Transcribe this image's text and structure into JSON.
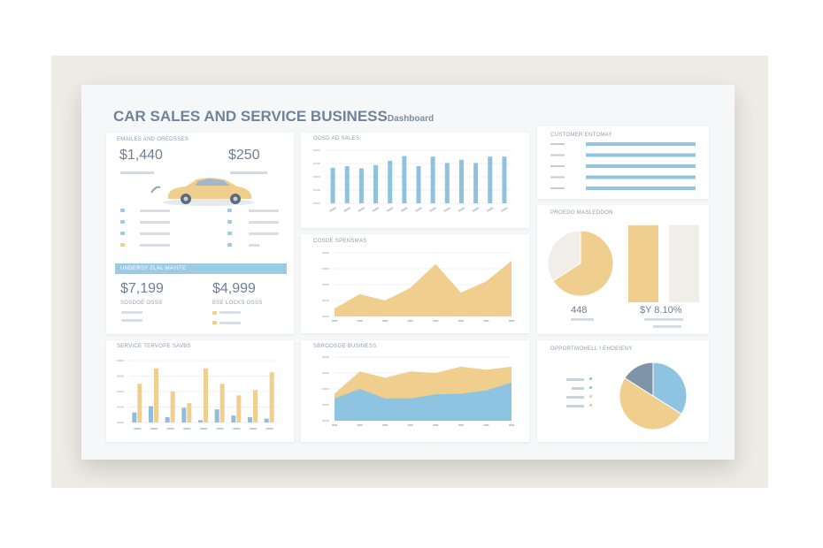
{
  "title": "CAR SALES AND SERVICE BUSINESS",
  "title_suffix": "Dashboard",
  "panel_sales": {
    "title": "EMAILES AND OREDSSES",
    "value_left": "$1,440",
    "value_right": "$250",
    "car_icon": "car-illustration",
    "legend_rows": [
      {
        "left_icon": "circle-icon",
        "right_icon": "card-icon"
      },
      {
        "left_icon": "wrench-icon",
        "right_icon": "card-icon"
      },
      {
        "left_icon": "tag-icon",
        "right_icon": "card-icon"
      },
      {
        "left_icon": "box-icon",
        "right_icon": "box-icon"
      }
    ],
    "band_title": "UNDERSY ZLAL MAYITE",
    "value_bottom_left": "$7,199",
    "value_bottom_right": "$4,999",
    "caption_left": "SOSDOE OSSS",
    "caption_right": "BSE LOCKS OSSS"
  },
  "chart_data": [
    {
      "id": "bar-top",
      "type": "bar",
      "title": "OOSD AD SALES",
      "categories": [
        "1",
        "2",
        "3",
        "4",
        "5",
        "6",
        "7",
        "8",
        "9",
        "10",
        "11",
        "12",
        "13"
      ],
      "values": [
        67,
        70,
        66,
        72,
        80,
        89,
        70,
        88,
        76,
        82,
        76,
        88,
        88
      ],
      "ylim": [
        0,
        100
      ],
      "color": "#8fc2de",
      "grid": true
    },
    {
      "id": "area-mid",
      "type": "area",
      "title": "COSDE SPENSMAS",
      "x": [
        0,
        1,
        2,
        3,
        4,
        5,
        6,
        7
      ],
      "values": [
        10,
        28,
        20,
        36,
        66,
        30,
        44,
        70
      ],
      "ylim": [
        0,
        80
      ],
      "color": "#f0cf8e",
      "grid": true
    },
    {
      "id": "bar-bottom",
      "type": "bar",
      "title": "SERVICE TERVOPE SAVBS",
      "categories": [
        "1",
        "2",
        "3",
        "4",
        "5",
        "6",
        "7",
        "8",
        "9"
      ],
      "series": [
        {
          "values": [
            13,
            21,
            7,
            19,
            3,
            17,
            9,
            7,
            5
          ],
          "color": "#8fbddb"
        },
        {
          "values": [
            50,
            70,
            40,
            25,
            70,
            50,
            35,
            42,
            65
          ],
          "color": "#f0cf8e"
        }
      ],
      "ylim": [
        0,
        80
      ],
      "grid": true
    },
    {
      "id": "area-bottom",
      "type": "area",
      "title": "SBROOSGE BUSINESS",
      "x": [
        0,
        1,
        2,
        3,
        4,
        5,
        6,
        7
      ],
      "series": [
        {
          "values": [
            28,
            40,
            28,
            28,
            33,
            34,
            38,
            48
          ],
          "color": "#8fc3e2"
        },
        {
          "values": [
            34,
            62,
            54,
            62,
            60,
            68,
            64,
            68
          ],
          "color": "#f0cf8e"
        }
      ],
      "ylim": [
        0,
        80
      ],
      "grid": true
    },
    {
      "id": "hbar-right",
      "type": "bar",
      "orientation": "horizontal",
      "title": "CUSTOMER ENTOMAY",
      "categories": [
        "1",
        "2",
        "3",
        "4",
        "5"
      ],
      "values": [
        100,
        100,
        100,
        100,
        100
      ],
      "color": "#93c4e0"
    },
    {
      "id": "pie-mid",
      "type": "pie",
      "title": "PROEDG MASLEDOON",
      "slices": [
        {
          "value": 66,
          "color": "#f0cf8e"
        },
        {
          "value": 34,
          "color": "#f1ede8"
        }
      ],
      "bars": [
        {
          "value": 89,
          "color": "#f0cf8e"
        },
        {
          "value": 89,
          "color": "#f1ede8"
        }
      ],
      "value_left": "448",
      "value_right": "$Y 8.10%"
    },
    {
      "id": "pie-bottom",
      "type": "pie",
      "title": "OPPORTMOHELL I EHOEIENY",
      "slices": [
        {
          "value": 34,
          "color": "#8fc3e2"
        },
        {
          "value": 50,
          "color": "#f0cf8e"
        },
        {
          "value": 16,
          "color": "#7e95a9"
        }
      ]
    }
  ]
}
